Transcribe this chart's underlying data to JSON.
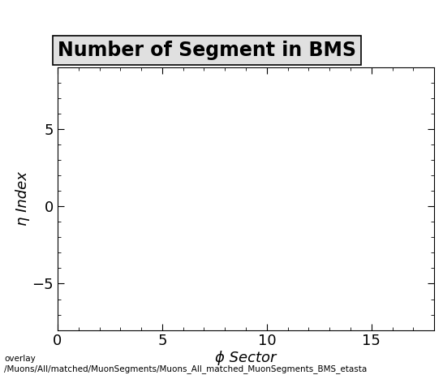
{
  "title": "Number of Segment in BMS",
  "xlabel": "ϕ Sector",
  "ylabel": "η Index",
  "xlim": [
    0,
    18
  ],
  "ylim": [
    -8,
    9
  ],
  "xticks": [
    0,
    5,
    10,
    15
  ],
  "yticks": [
    -5,
    0,
    5
  ],
  "background_color": "#ffffff",
  "plot_bg_color": "#ffffff",
  "title_fontsize": 17,
  "label_fontsize": 13,
  "tick_fontsize": 13,
  "footer_text": "overlay\n/Muons/All/matched/MuonSegments/Muons_All_matched_MuonSegments_BMS_etasta",
  "footer_fontsize": 7.5,
  "title_box_facecolor": "#e0e0e0",
  "title_box_edgecolor": "#000000"
}
